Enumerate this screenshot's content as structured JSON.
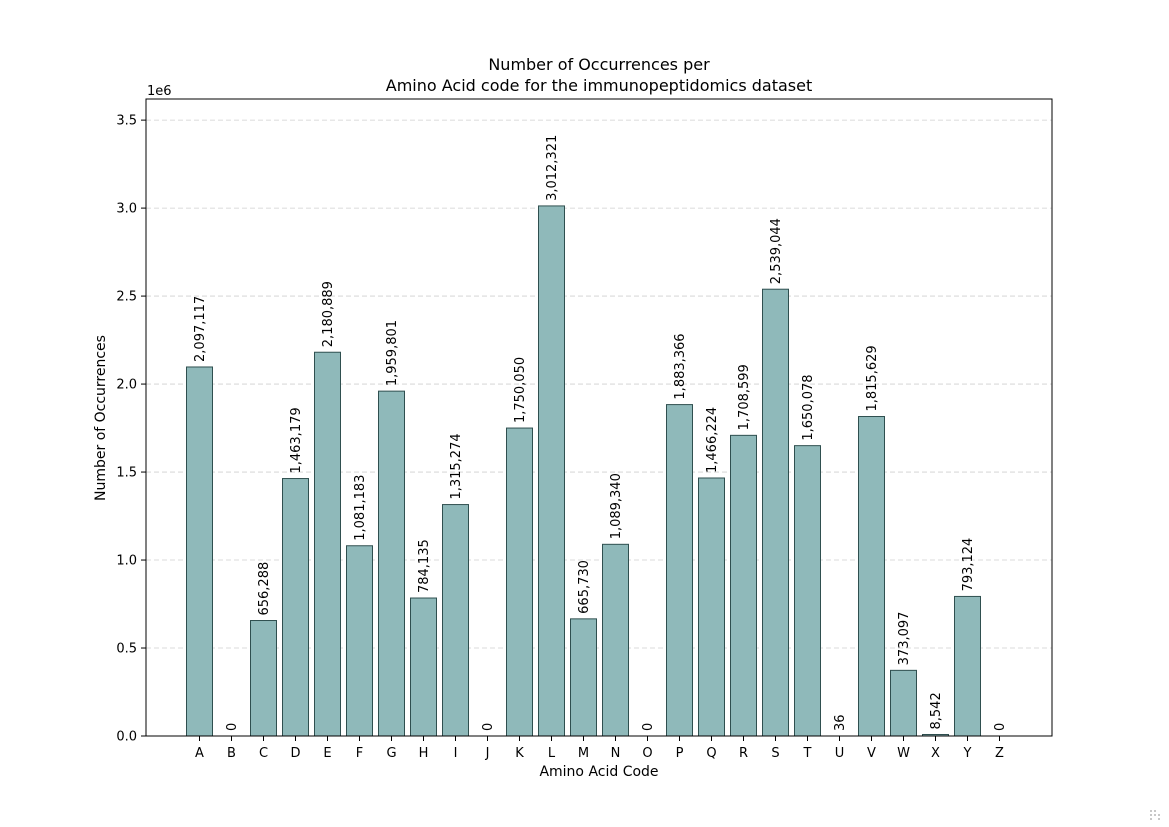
{
  "chart_data": {
    "type": "bar",
    "title_line1": "Number of Occurrences per",
    "title_line2": "Amino Acid code for the immunopeptidomics dataset",
    "xlabel": "Amino Acid Code",
    "ylabel": "Number of Occurrences",
    "y_offset_label": "1e6",
    "ylim": [
      0,
      3.62
    ],
    "yticks": [
      0.0,
      0.5,
      1.0,
      1.5,
      2.0,
      2.5,
      3.0,
      3.5
    ],
    "ytick_labels": [
      "0.0",
      "0.5",
      "1.0",
      "1.5",
      "2.0",
      "2.5",
      "3.0",
      "3.5"
    ],
    "grid": "y-dashed",
    "bar_color": "#8fb9ba",
    "bar_edge_color": "#2f4f4f",
    "categories": [
      "A",
      "B",
      "C",
      "D",
      "E",
      "F",
      "G",
      "H",
      "I",
      "J",
      "K",
      "L",
      "M",
      "N",
      "O",
      "P",
      "Q",
      "R",
      "S",
      "T",
      "U",
      "V",
      "W",
      "X",
      "Y",
      "Z"
    ],
    "values": [
      2097117,
      0,
      656288,
      1463179,
      2180889,
      1081183,
      1959801,
      784135,
      1315274,
      0,
      1750050,
      3012321,
      665730,
      1089340,
      0,
      1883366,
      1466224,
      1708599,
      2539044,
      1650078,
      36,
      1815629,
      373097,
      8542,
      793124,
      0
    ],
    "value_labels": [
      "2,097,117",
      "0",
      "656,288",
      "1,463,179",
      "2,180,889",
      "1,081,183",
      "1,959,801",
      "784,135",
      "1,315,274",
      "0",
      "1,750,050",
      "3,012,321",
      "665,730",
      "1,089,340",
      "0",
      "1,883,366",
      "1,466,224",
      "1,708,599",
      "2,539,044",
      "1,650,078",
      "36",
      "1,815,629",
      "373,097",
      "8,542",
      "793,124",
      "0"
    ]
  }
}
